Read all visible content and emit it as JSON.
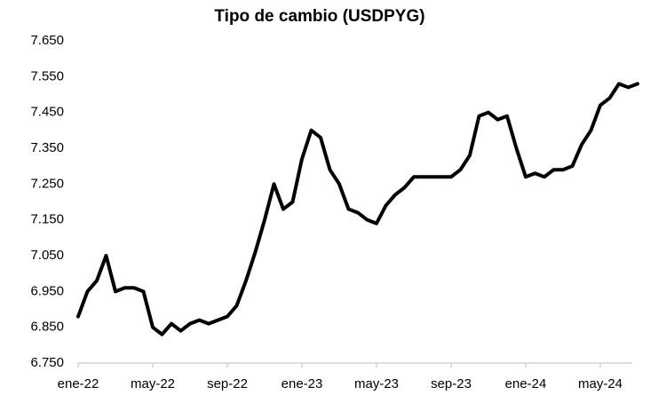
{
  "chart_data": {
    "type": "line",
    "title": "Tipo de cambio (USDPYG)",
    "categories": [
      "ene-22",
      null,
      null,
      null,
      null,
      null,
      null,
      null,
      "may-22",
      null,
      null,
      null,
      null,
      null,
      null,
      null,
      "sep-22",
      null,
      null,
      null,
      null,
      null,
      null,
      null,
      "ene-23",
      null,
      null,
      null,
      null,
      null,
      null,
      null,
      "may-23",
      null,
      null,
      null,
      null,
      null,
      null,
      null,
      "sep-23",
      null,
      null,
      null,
      null,
      null,
      null,
      null,
      "ene-24",
      null,
      null,
      null,
      null,
      null,
      null,
      null,
      "may-24",
      null,
      null,
      null,
      null
    ],
    "values": [
      6880,
      6950,
      6980,
      7050,
      6950,
      6960,
      6960,
      6950,
      6850,
      6830,
      6860,
      6840,
      6860,
      6870,
      6860,
      6870,
      6880,
      6910,
      6980,
      7060,
      7150,
      7250,
      7180,
      7200,
      7320,
      7400,
      7380,
      7290,
      7250,
      7180,
      7170,
      7150,
      7140,
      7190,
      7220,
      7240,
      7270,
      7270,
      7270,
      7270,
      7270,
      7290,
      7330,
      7440,
      7450,
      7430,
      7440,
      7350,
      7270,
      7280,
      7270,
      7290,
      7290,
      7300,
      7360,
      7400,
      7470,
      7490,
      7530,
      7520,
      7530
    ],
    "color": "#000000",
    "ylim": [
      6750,
      7650
    ],
    "yticks": [
      {
        "value": 6750,
        "label": "6.750"
      },
      {
        "value": 6850,
        "label": "6.850"
      },
      {
        "value": 6950,
        "label": "6.950"
      },
      {
        "value": 7050,
        "label": "7.050"
      },
      {
        "value": 7150,
        "label": "7.150"
      },
      {
        "value": 7250,
        "label": "7.250"
      },
      {
        "value": 7350,
        "label": "7.350"
      },
      {
        "value": 7450,
        "label": "7.450"
      },
      {
        "value": 7550,
        "label": "7.550"
      },
      {
        "value": 7650,
        "label": "7.650"
      }
    ],
    "grid": false
  }
}
